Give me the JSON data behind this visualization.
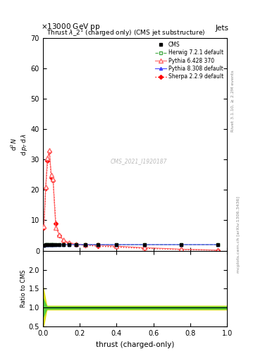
{
  "header_left": "13000 GeV pp",
  "header_right": "Jets",
  "watermark": "CMS_2021_I1920187",
  "right_label_top": "Rivet 3.1.10, ≥ 2.2M events",
  "right_label_bottom": "mcplots.cern.ch [arXiv:1306.3436]",
  "ylabel_ratio": "Ratio to CMS",
  "xlabel": "thrust (charged-only)",
  "xlim": [
    0,
    1
  ],
  "ylim_main": [
    0,
    70
  ],
  "ylim_ratio": [
    0.5,
    2.5
  ],
  "yticks_main": [
    0,
    10,
    20,
    30,
    40,
    50,
    60,
    70
  ],
  "yticks_ratio": [
    0.5,
    1.0,
    1.5,
    2.0
  ],
  "cms_x": [
    0.005,
    0.015,
    0.025,
    0.035,
    0.045,
    0.055,
    0.07,
    0.09,
    0.11,
    0.14,
    0.18,
    0.23,
    0.3,
    0.4,
    0.55,
    0.75,
    0.95
  ],
  "cms_y": [
    1.8,
    1.9,
    2.0,
    2.0,
    2.0,
    2.0,
    2.0,
    2.0,
    2.0,
    2.0,
    2.0,
    2.0,
    2.0,
    2.0,
    2.0,
    2.0,
    2.0
  ],
  "herwig_x": [
    0.005,
    0.015,
    0.025,
    0.035,
    0.045,
    0.055,
    0.07,
    0.09,
    0.11,
    0.14,
    0.18,
    0.23,
    0.3,
    0.4,
    0.55,
    0.75,
    0.95
  ],
  "herwig_y": [
    1.8,
    1.9,
    2.0,
    2.0,
    2.0,
    2.0,
    2.0,
    2.0,
    2.0,
    2.0,
    2.0,
    2.0,
    2.0,
    2.0,
    2.0,
    2.0,
    2.0
  ],
  "pythia6_x": [
    0.005,
    0.015,
    0.025,
    0.035,
    0.045,
    0.055,
    0.07,
    0.09,
    0.11,
    0.14,
    0.18,
    0.23,
    0.3,
    0.4,
    0.55,
    0.75,
    0.95
  ],
  "pythia6_y": [
    8.0,
    21.0,
    30.5,
    33.0,
    25.0,
    23.5,
    7.5,
    5.2,
    3.5,
    2.7,
    2.2,
    2.0,
    1.9,
    1.5,
    1.0,
    0.5,
    0.2
  ],
  "pythia8_x": [
    0.005,
    0.015,
    0.025,
    0.035,
    0.045,
    0.055,
    0.07,
    0.09,
    0.11,
    0.14,
    0.18,
    0.23,
    0.3,
    0.4,
    0.55,
    0.75,
    0.95
  ],
  "pythia8_y": [
    1.8,
    1.9,
    2.0,
    2.0,
    2.0,
    2.0,
    2.0,
    2.0,
    2.0,
    2.0,
    2.0,
    2.0,
    2.0,
    2.0,
    2.0,
    2.0,
    2.0
  ],
  "sherpa_x": [
    0.005,
    0.015,
    0.025,
    0.035,
    0.045,
    0.055,
    0.07,
    0.09,
    0.11,
    0.14,
    0.18,
    0.23,
    0.3,
    0.4,
    0.55,
    0.75,
    0.95
  ],
  "sherpa_y": [
    7.5,
    20.5,
    29.5,
    32.5,
    24.0,
    23.0,
    9.0,
    5.0,
    3.2,
    2.5,
    2.0,
    1.8,
    1.5,
    1.2,
    0.8,
    0.4,
    0.15
  ],
  "color_cms": "#000000",
  "color_herwig": "#44aa44",
  "color_pythia6": "#ff6666",
  "color_pythia8": "#4444ff",
  "color_sherpa": "#ff0000",
  "color_green_band": "#44cc44",
  "color_yellow_band": "#dddd00",
  "bg_color": "#ffffff"
}
